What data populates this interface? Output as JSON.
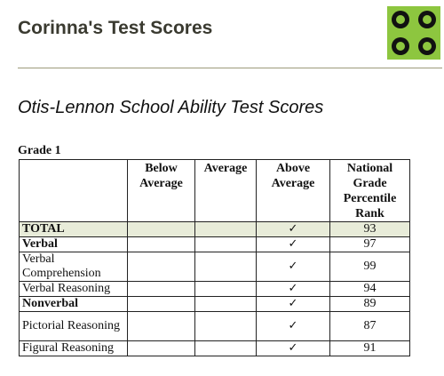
{
  "header": {
    "title": "Corinna's Test Scores",
    "logo_icon": "green-circles-logo-icon",
    "logo_colors": {
      "accent": "#8dc63f",
      "dark": "#111111"
    }
  },
  "section": {
    "title": "Otis-Lennon School Ability Test Scores"
  },
  "grade": {
    "label": "Grade 1"
  },
  "table": {
    "headers": [
      "",
      "Below Average",
      "Average",
      "Above Average",
      "National Grade Percentile Rank"
    ],
    "rows": [
      {
        "label": "TOTAL",
        "bold": true,
        "below": "",
        "average": "",
        "above": "✓",
        "rank": "93"
      },
      {
        "label": "Verbal",
        "bold": true,
        "below": "",
        "average": "",
        "above": "✓",
        "rank": "97"
      },
      {
        "label": "Verbal Comprehension",
        "bold": false,
        "below": "",
        "average": "",
        "above": "✓",
        "rank": "99"
      },
      {
        "label": "Verbal Reasoning",
        "bold": false,
        "below": "",
        "average": "",
        "above": "✓",
        "rank": "94"
      },
      {
        "label": "Nonverbal",
        "bold": true,
        "below": "",
        "average": "",
        "above": "✓",
        "rank": "89"
      },
      {
        "label": "Pictorial Reasoning",
        "bold": false,
        "below": "",
        "average": "",
        "above": "✓",
        "rank": "87"
      },
      {
        "label": "Figural Reasoning",
        "bold": false,
        "below": "",
        "average": "",
        "above": "✓",
        "rank": "91"
      }
    ]
  }
}
